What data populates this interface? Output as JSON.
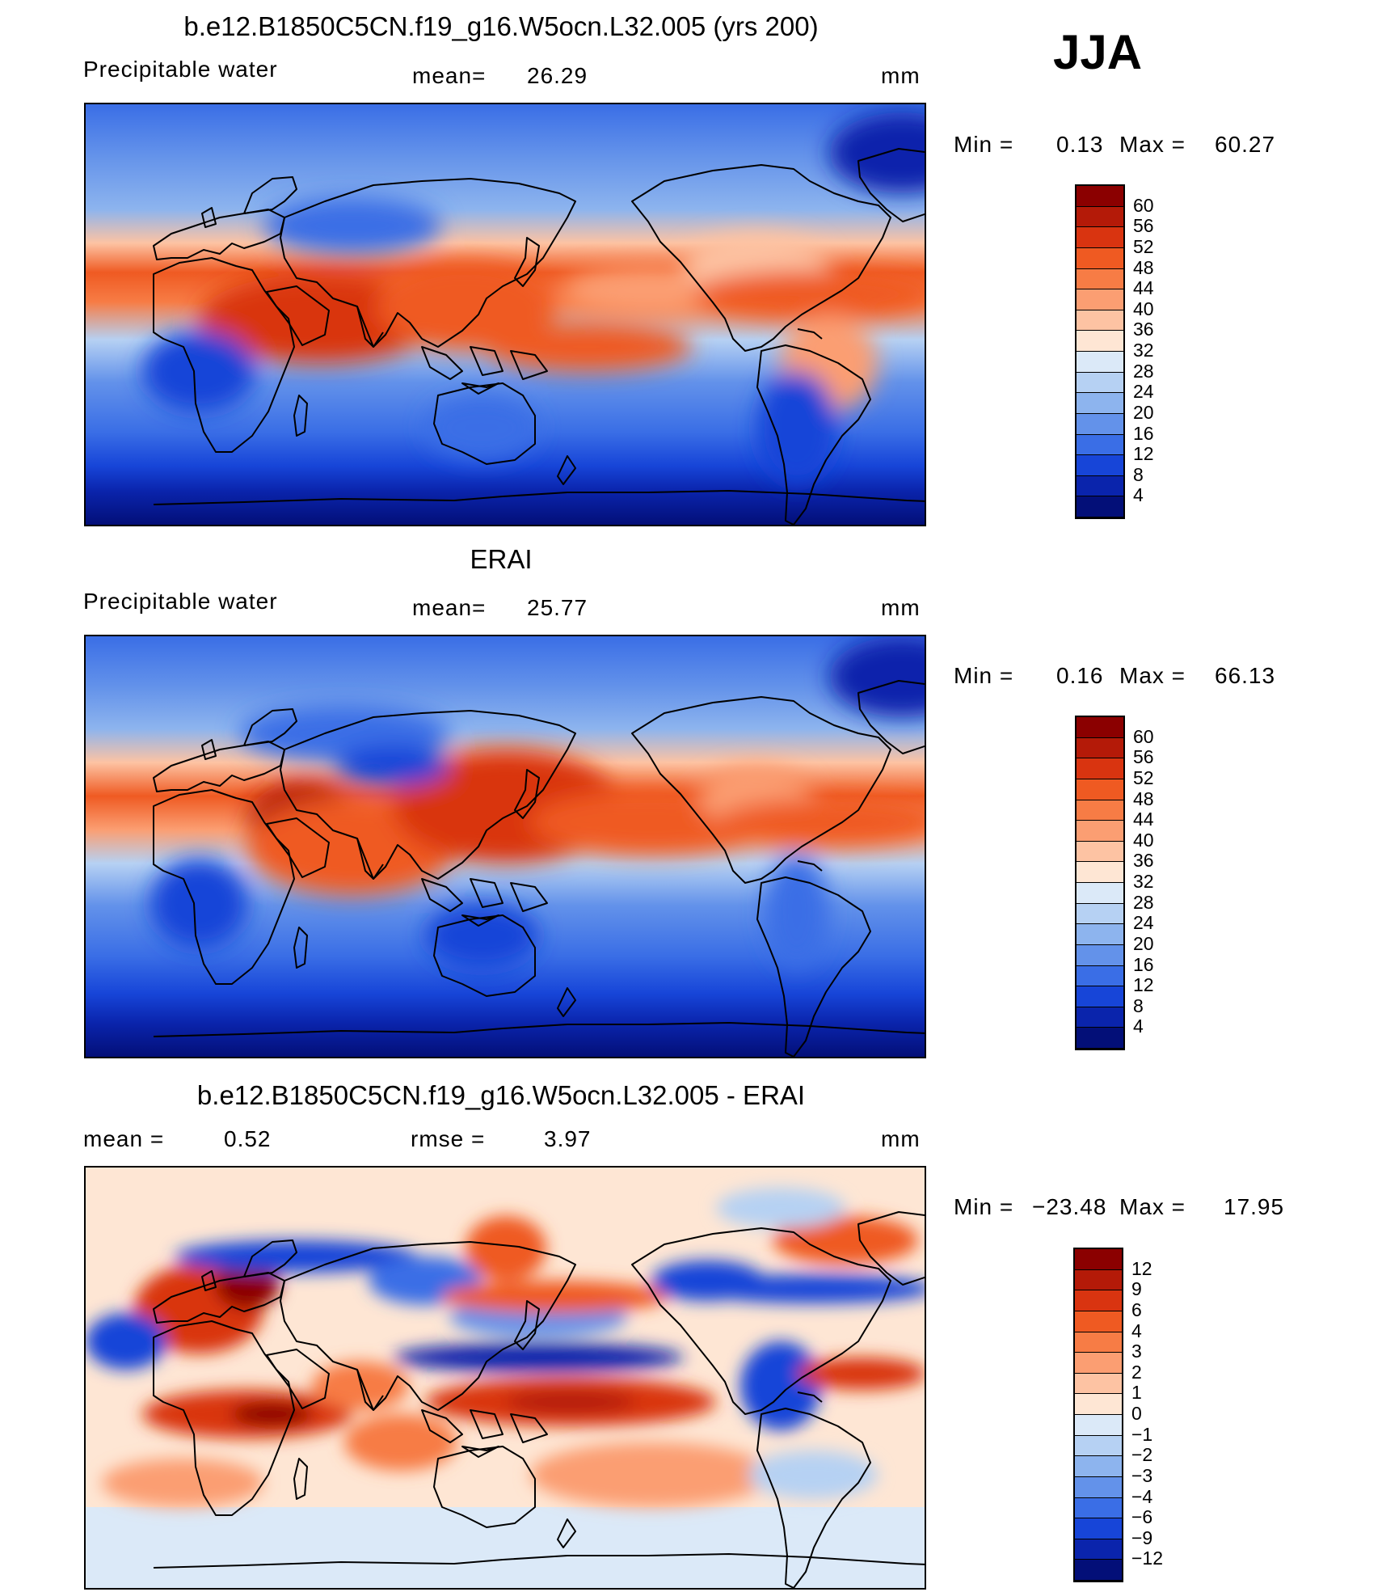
{
  "season": "JJA",
  "units_label": "mm",
  "panels": [
    {
      "title": "b.e12.B1850C5CN.f19_g16.W5ocn.L32.005 (yrs 200)",
      "left_label": "Precipitable  water",
      "stat_label": "mean=",
      "stat_value": "26.29",
      "min_label": "Min  =",
      "min_value": "0.13",
      "max_label": "Max  =",
      "max_value": "60.27"
    },
    {
      "title": "ERAI",
      "left_label": "Precipitable  water",
      "stat_label": "mean=",
      "stat_value": "25.77",
      "min_label": "Min  =",
      "min_value": "0.16",
      "max_label": "Max  =",
      "max_value": "66.13"
    },
    {
      "title": "b.e12.B1850C5CN.f19_g16.W5ocn.L32.005 - ERAI",
      "left_label": "mean  =",
      "left_value": "0.52",
      "stat_label": "rmse  =",
      "stat_value": "3.97",
      "min_label": "Min  =",
      "min_value": "−23.48",
      "max_label": "Max  =",
      "max_value": "17.95"
    }
  ],
  "colorbars": {
    "abs": {
      "labels": [
        "60",
        "56",
        "52",
        "48",
        "44",
        "40",
        "36",
        "32",
        "28",
        "24",
        "20",
        "16",
        "12",
        "8",
        "4"
      ],
      "colors": [
        "#8b0000",
        "#b41a08",
        "#d93410",
        "#ef5a22",
        "#f77c45",
        "#fb9e72",
        "#fdc3a3",
        "#fee6d4",
        "#dbe9f8",
        "#b6d1f3",
        "#8db4ee",
        "#6392ea",
        "#3a6ee6",
        "#1745d8",
        "#0a24ac",
        "#030f78"
      ]
    },
    "diff": {
      "labels": [
        "12",
        "9",
        "6",
        "4",
        "3",
        "2",
        "1",
        "0",
        "−1",
        "−2",
        "−3",
        "−4",
        "−6",
        "−9",
        "−12"
      ],
      "colors": [
        "#8b0000",
        "#b41a08",
        "#d93410",
        "#ef5a22",
        "#f77c45",
        "#fb9e72",
        "#fdc3a3",
        "#fee6d4",
        "#dbe9f8",
        "#b6d1f3",
        "#8db4ee",
        "#6392ea",
        "#3a6ee6",
        "#1745d8",
        "#0a24ac",
        "#030f78"
      ]
    }
  }
}
